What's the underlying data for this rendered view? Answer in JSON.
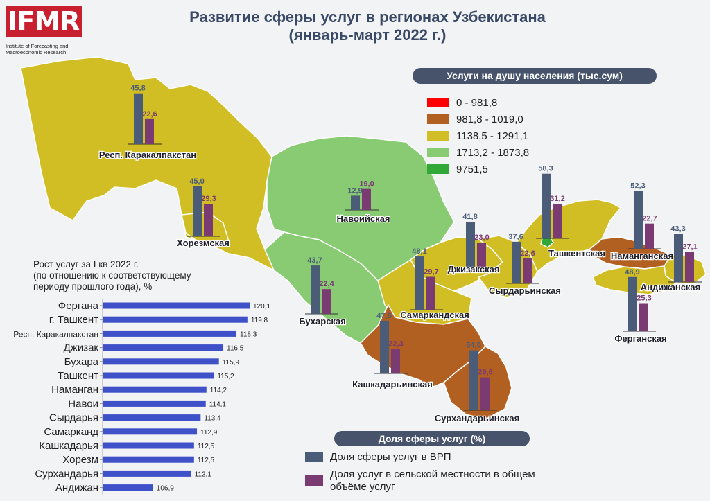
{
  "brand": {
    "logo_text": "IFMR",
    "logo_subtitle_line1": "Institute of Forecasting and",
    "logo_subtitle_line2": "Macroeconomic Research"
  },
  "title_line1": "Развитие сферы услуг в регионах Узбекистана",
  "title_line2": "(январь-март 2022 г.)",
  "map_legend": {
    "title": "Услуги на душу населения (тыс.сум)",
    "items": [
      {
        "label": "0 - 981,8",
        "color": "#ff0000"
      },
      {
        "label": "981,8 - 1019,0",
        "color": "#b25f22"
      },
      {
        "label": "1138,5 - 1291,1",
        "color": "#d1bd24"
      },
      {
        "label": "1713,2 - 1873,8",
        "color": "#88cb72"
      },
      {
        "label": "9751,5",
        "color": "#32a838"
      }
    ]
  },
  "bottom_legend": {
    "title": "Доля сферы услуг (%)",
    "series1_label": "Доля сферы услуг в ВРП",
    "series2_label_line1": "Доля услуг в сельской местности в общем",
    "series2_label_line2": "объёме услуг",
    "series1_color": "#4a5c78",
    "series2_color": "#7a3a72"
  },
  "chart_data": [
    {
      "type": "bar",
      "title": "Доля сферы услуг (%)",
      "series": [
        {
          "name": "Доля сферы услуг в ВРП",
          "values": [
            45.8,
            45.0,
            12.9,
            43.7,
            41.8,
            48.1,
            37.6,
            58.3,
            52.3,
            43.3,
            48.9,
            47.6,
            54.0
          ]
        },
        {
          "name": "Доля услуг в сельской местности в общем объёме услуг",
          "values": [
            22.6,
            29.3,
            19.0,
            22.4,
            23.0,
            29.7,
            22.6,
            31.2,
            22.7,
            27.1,
            25.3,
            22.3,
            29.6
          ]
        }
      ],
      "categories": [
        "Респ. Каракалпакстан",
        "Хорезмская",
        "Навоийская",
        "Бухарская",
        "Джизакская",
        "Самаркандская",
        "Сырдарьинская",
        "Ташкентская",
        "Наманганская",
        "Андижанская",
        "Ферганская",
        "Кашкадарьинская",
        "Сурхандарьинская"
      ],
      "value_labels": [
        [
          "45,8",
          "22,6"
        ],
        [
          "45,0",
          "29,3"
        ],
        [
          "12,9",
          "19,0"
        ],
        [
          "43,7",
          "22,4"
        ],
        [
          "41,8",
          "23,0"
        ],
        [
          "48,1",
          "29,7"
        ],
        [
          "37,6",
          "22,6"
        ],
        [
          "58,3",
          "31,2"
        ],
        [
          "52,3",
          "22,7"
        ],
        [
          "43,3",
          "27,1"
        ],
        [
          "48,9",
          "25,3"
        ],
        [
          "47,6",
          "22,3"
        ],
        [
          "54,0",
          "29,6"
        ]
      ]
    },
    {
      "type": "bar",
      "orientation": "horizontal",
      "title": "Рост услуг за I кв 2022 г. (по отношению к соответствующему периоду прошлого года), %",
      "title_lines": [
        "Рост услуг за I кв 2022 г.",
        "(по отношению к соответствующему",
        "периоду прошлого года), %"
      ],
      "categories": [
        "Фергана",
        "г. Ташкент",
        "Респ. Каракалпакстан",
        "Джизак",
        "Бухара",
        "Ташкент",
        "Наманган",
        "Навои",
        "Сырдарья",
        "Самарканд",
        "Кашкадарья",
        "Хорезм",
        "Сурхандарья",
        "Андижан"
      ],
      "values": [
        120.1,
        119.8,
        118.3,
        116.5,
        115.9,
        115.2,
        114.2,
        114.1,
        113.4,
        112.9,
        112.5,
        112.5,
        112.1,
        106.9
      ],
      "value_labels": [
        "120,1",
        "119,8",
        "118,3",
        "116,5",
        "115,9",
        "115,2",
        "114,2",
        "114,1",
        "113,4",
        "112,9",
        "112,5",
        "112,5",
        "112,1",
        "106,9"
      ],
      "color": "#3f51c9"
    }
  ]
}
